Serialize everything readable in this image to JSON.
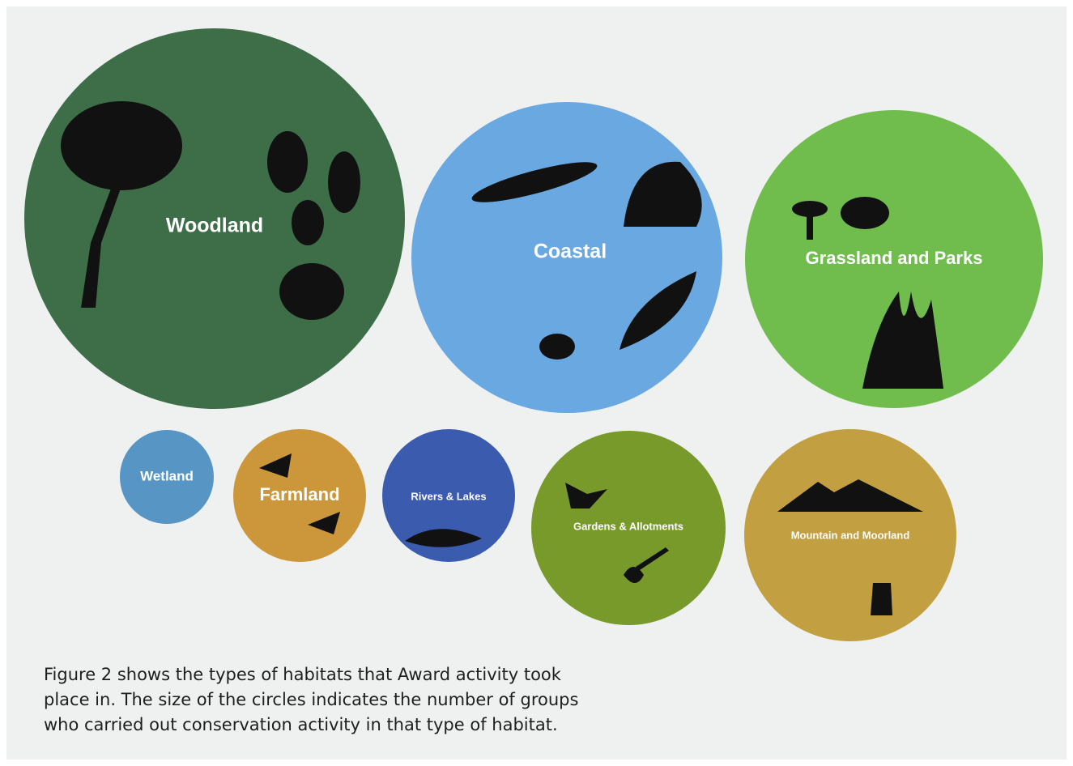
{
  "nodes": [
    {
      "label": "Woodland"
    },
    {
      "label": "Coastal"
    },
    {
      "label": "Grassland and Parks"
    },
    {
      "label": "Wetland"
    },
    {
      "label": "Farmland"
    },
    {
      "label": "Rivers & Lakes"
    },
    {
      "label": "Gardens & Allotments"
    },
    {
      "label": "Mountain and Moorland"
    }
  ],
  "caption": {
    "lines": [
      "Figure 2 shows the types of habitats that Award activity took",
      "place in. The size of the circles indicates the number of groups",
      "who carried out conservation activity in that type of habitat."
    ]
  }
}
